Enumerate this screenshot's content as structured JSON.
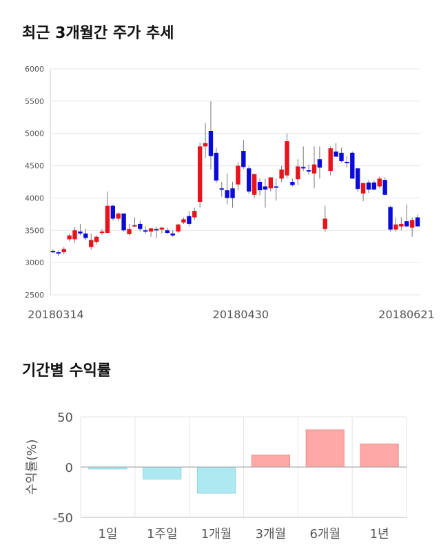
{
  "titles": {
    "price_trend": "최근 3개월간 주가 추세",
    "period_returns": "기간별 수익률"
  },
  "colors": {
    "up": "#e8131b",
    "down": "#0b0bd9",
    "positive_bar": "#ffa8a8",
    "negative_bar": "#aee9f2",
    "grid": "#e6e6e6"
  },
  "chart_data": [
    {
      "type": "candlestick",
      "title": "최근 3개월간 주가 추세",
      "ylim": [
        2500,
        6000
      ],
      "y_ticks": [
        "2500",
        "3000",
        "3500",
        "4000",
        "4500",
        "5000",
        "5500",
        "6000"
      ],
      "x_ticks": [
        "20180314",
        "20180430",
        "20180621"
      ],
      "grid": true,
      "candles": [
        [
          3180,
          3200,
          3150,
          3160
        ],
        [
          3160,
          3190,
          3100,
          3150
        ],
        [
          3160,
          3240,
          3130,
          3210
        ],
        [
          3360,
          3450,
          3330,
          3420
        ],
        [
          3360,
          3550,
          3300,
          3500
        ],
        [
          3480,
          3600,
          3420,
          3450
        ],
        [
          3450,
          3520,
          3350,
          3380
        ],
        [
          3240,
          3450,
          3200,
          3350
        ],
        [
          3320,
          3420,
          3280,
          3400
        ],
        [
          3470,
          3520,
          3430,
          3480
        ],
        [
          3460,
          4100,
          3450,
          3880
        ],
        [
          3880,
          3900,
          3650,
          3680
        ],
        [
          3680,
          3780,
          3640,
          3760
        ],
        [
          3760,
          3760,
          3480,
          3500
        ],
        [
          3440,
          3600,
          3420,
          3520
        ],
        [
          3580,
          3700,
          3550,
          3580
        ],
        [
          3600,
          3650,
          3480,
          3520
        ],
        [
          3500,
          3560,
          3440,
          3480
        ],
        [
          3480,
          3540,
          3400,
          3530
        ],
        [
          3520,
          3550,
          3380,
          3510
        ],
        [
          3510,
          3550,
          3450,
          3540
        ],
        [
          3500,
          3540,
          3440,
          3460
        ],
        [
          3450,
          3500,
          3400,
          3420
        ],
        [
          3480,
          3600,
          3460,
          3590
        ],
        [
          3620,
          3700,
          3600,
          3670
        ],
        [
          3720,
          3800,
          3560,
          3600
        ],
        [
          3700,
          3850,
          3660,
          3800
        ],
        [
          3940,
          4860,
          3850,
          4800
        ],
        [
          4800,
          5160,
          4620,
          4850
        ],
        [
          5040,
          5500,
          4440,
          4650
        ],
        [
          4700,
          4780,
          4230,
          4270
        ],
        [
          4150,
          4250,
          4020,
          4130
        ],
        [
          4120,
          4380,
          3900,
          4000
        ],
        [
          4150,
          4250,
          3850,
          4000
        ],
        [
          4210,
          4550,
          4120,
          4500
        ],
        [
          4730,
          4900,
          4450,
          4480
        ],
        [
          4460,
          4500,
          4060,
          4100
        ],
        [
          4050,
          4380,
          4000,
          4370
        ],
        [
          4250,
          4300,
          4040,
          4120
        ],
        [
          4180,
          4300,
          3850,
          4130
        ],
        [
          4150,
          4300,
          4100,
          4320
        ],
        [
          4180,
          4300,
          3960,
          4160
        ],
        [
          4300,
          4500,
          4250,
          4440
        ],
        [
          4350,
          5000,
          4300,
          4880
        ],
        [
          4250,
          4300,
          4180,
          4200
        ],
        [
          4290,
          4600,
          4200,
          4490
        ],
        [
          4480,
          4800,
          4420,
          4460
        ],
        [
          4430,
          4520,
          4360,
          4420
        ],
        [
          4380,
          4800,
          4150,
          4520
        ],
        [
          4600,
          4800,
          4300,
          4470
        ],
        [
          3520,
          3880,
          3480,
          3680
        ],
        [
          4420,
          4800,
          4350,
          4770
        ],
        [
          4720,
          4850,
          4640,
          4640
        ],
        [
          4700,
          4780,
          4550,
          4570
        ],
        [
          4560,
          4650,
          4470,
          4540
        ],
        [
          4700,
          4720,
          4300,
          4300
        ],
        [
          4460,
          4470,
          4100,
          4140
        ],
        [
          4070,
          4240,
          3950,
          4230
        ],
        [
          4240,
          4280,
          4080,
          4130
        ],
        [
          4240,
          4270,
          4120,
          4130
        ],
        [
          4180,
          4330,
          4150,
          4300
        ],
        [
          4280,
          4320,
          4040,
          4050
        ],
        [
          3860,
          3880,
          3480,
          3510
        ],
        [
          3510,
          3700,
          3480,
          3590
        ],
        [
          3560,
          3700,
          3500,
          3600
        ],
        [
          3640,
          3900,
          3550,
          3560
        ],
        [
          3540,
          3700,
          3400,
          3660
        ],
        [
          3700,
          3740,
          3560,
          3560
        ]
      ]
    },
    {
      "type": "bar",
      "title": "기간별 수익률",
      "ylabel": "수익률(%)",
      "categories": [
        "1일",
        "1주일",
        "1개월",
        "3개월",
        "6개월",
        "1년"
      ],
      "values": [
        -2,
        -12,
        -26,
        12,
        37,
        23
      ],
      "ylim": [
        -50,
        50
      ],
      "y_ticks": [
        "50",
        "0",
        "-50"
      ],
      "grid": true
    }
  ]
}
